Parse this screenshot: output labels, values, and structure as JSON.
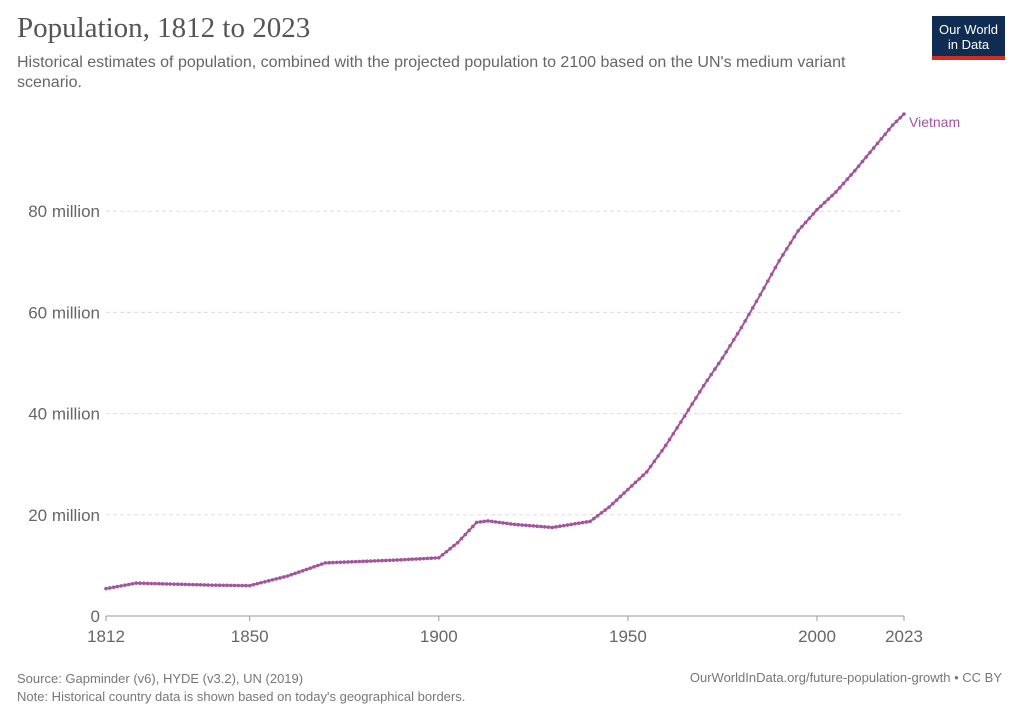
{
  "header": {
    "title": "Population, 1812 to 2023",
    "subtitle": "Historical estimates of population, combined with the projected population to 2100 based on the UN's medium variant scenario."
  },
  "logo": {
    "line1": "Our World",
    "line2": "in Data"
  },
  "footer": {
    "source": "Source: Gapminder (v6), HYDE (v3.2), UN (2019)",
    "note": "Note: Historical country data is shown based on today's geographical borders.",
    "url": "OurWorldInData.org/future-population-growth • CC BY"
  },
  "colors": {
    "series": "#a2559c",
    "grid": "#dddddd",
    "axis": "#999999"
  },
  "chart_data": {
    "type": "line",
    "title": "Population, 1812 to 2023",
    "xlabel": "",
    "ylabel": "",
    "xlim": [
      1812,
      2023
    ],
    "ylim": [
      0,
      100000000
    ],
    "grid": true,
    "x_ticks": [
      {
        "value": 1812,
        "label": "1812"
      },
      {
        "value": 1850,
        "label": "1850"
      },
      {
        "value": 1900,
        "label": "1900"
      },
      {
        "value": 1950,
        "label": "1950"
      },
      {
        "value": 2000,
        "label": "2000"
      },
      {
        "value": 2023,
        "label": "2023"
      }
    ],
    "y_ticks": [
      {
        "value": 0,
        "label": "0"
      },
      {
        "value": 20000000,
        "label": "20 million"
      },
      {
        "value": 40000000,
        "label": "40 million"
      },
      {
        "value": 60000000,
        "label": "60 million"
      },
      {
        "value": 80000000,
        "label": "80 million"
      }
    ],
    "series": [
      {
        "name": "Vietnam",
        "color": "#a2559c",
        "points": [
          [
            1812,
            5400000
          ],
          [
            1820,
            6500000
          ],
          [
            1830,
            6300000
          ],
          [
            1840,
            6100000
          ],
          [
            1850,
            6000000
          ],
          [
            1860,
            7900000
          ],
          [
            1870,
            10500000
          ],
          [
            1880,
            10800000
          ],
          [
            1890,
            11100000
          ],
          [
            1900,
            11500000
          ],
          [
            1905,
            14500000
          ],
          [
            1910,
            18500000
          ],
          [
            1913,
            18800000
          ],
          [
            1920,
            18100000
          ],
          [
            1930,
            17500000
          ],
          [
            1940,
            18700000
          ],
          [
            1945,
            21500000
          ],
          [
            1950,
            25000000
          ],
          [
            1955,
            28500000
          ],
          [
            1960,
            33700000
          ],
          [
            1965,
            39500000
          ],
          [
            1970,
            45500000
          ],
          [
            1975,
            51000000
          ],
          [
            1980,
            57000000
          ],
          [
            1985,
            63500000
          ],
          [
            1990,
            70200000
          ],
          [
            1995,
            76100000
          ],
          [
            2000,
            80300000
          ],
          [
            2005,
            83800000
          ],
          [
            2010,
            88000000
          ],
          [
            2015,
            92500000
          ],
          [
            2020,
            97000000
          ],
          [
            2023,
            99200000
          ]
        ]
      }
    ]
  }
}
